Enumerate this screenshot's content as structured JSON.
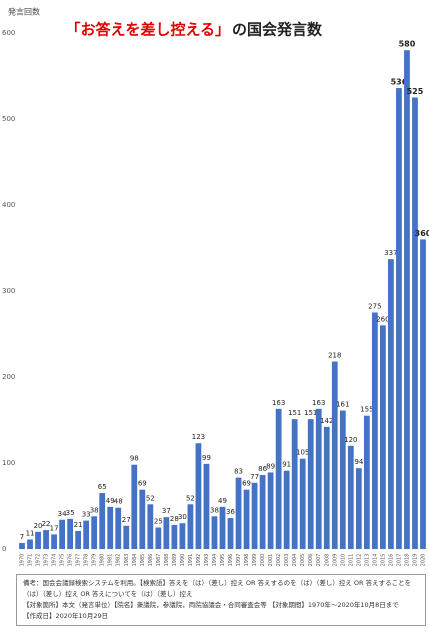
{
  "chart_data": {
    "type": "bar",
    "title_quote": "「お答えを差し控える」",
    "title_rest": "の国会発言数",
    "y_label": "発言回数",
    "categories": [
      "1970",
      "1971",
      "1972",
      "1973",
      "1974",
      "1975",
      "1976",
      "1977",
      "1978",
      "1979",
      "1980",
      "1981",
      "1982",
      "1983",
      "1984",
      "1985",
      "1986",
      "1987",
      "1988",
      "1989",
      "1990",
      "1991",
      "1992",
      "1993",
      "1994",
      "1995",
      "1996",
      "1997",
      "1998",
      "1999",
      "2000",
      "2001",
      "2002",
      "2003",
      "2004",
      "2005",
      "2006",
      "2007",
      "2008",
      "2009",
      "2010",
      "2011",
      "2012",
      "2013",
      "2014",
      "2015",
      "2016",
      "2017",
      "2018",
      "2019",
      "2020"
    ],
    "values": [
      7,
      11,
      20,
      22,
      17,
      34,
      35,
      21,
      33,
      38,
      65,
      49,
      48,
      27,
      98,
      69,
      52,
      25,
      37,
      28,
      30,
      52,
      123,
      99,
      38,
      49,
      36,
      83,
      69,
      77,
      86,
      89,
      163,
      91,
      151,
      105,
      151,
      163,
      142,
      218,
      161,
      120,
      94,
      155,
      275,
      260,
      337,
      536,
      580,
      525,
      360
    ],
    "color": "#4472c4",
    "ylim": [
      0,
      600
    ],
    "yticks": [
      0,
      100,
      200,
      300,
      400,
      500,
      600
    ],
    "grid": false
  },
  "note": [
    "備考：国会会議録検索システムを利用。【検索語】答えを（は）（差し）控え OR 答えするのを（は）（差し）控え OR 答えすることを（は）（差し）控え OR 答えについてを（は）（差し）控え",
    "【対象箇所】本文（発言単位）【院名】衆議院，参議院，両院協議会・合同審査会等 【対象期間】1970年～2020年10月8日まで",
    "【作成日】2020年10月29日"
  ]
}
